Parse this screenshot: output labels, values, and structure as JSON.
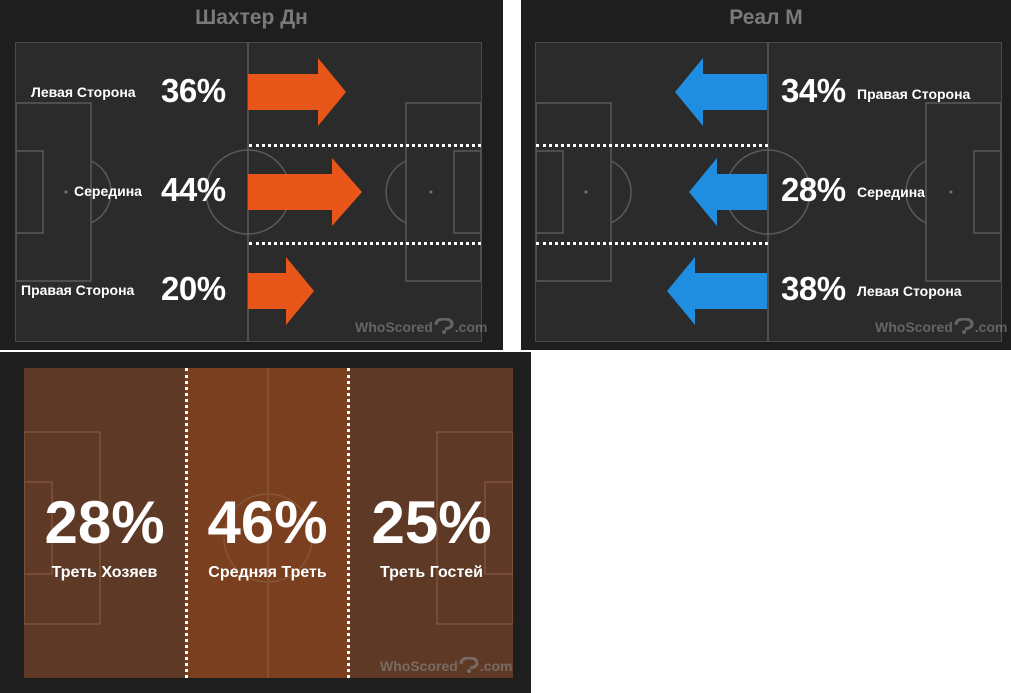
{
  "home_panel": {
    "team": "Шахтер Дн",
    "rows": [
      {
        "label": "Левая Сторона",
        "pct": "36%",
        "value": 36
      },
      {
        "label": "Середина",
        "pct": "44%",
        "value": 44
      },
      {
        "label": "Правая Сторона",
        "pct": "20%",
        "value": 20
      }
    ],
    "watermark": "WhoScored",
    "watermark_tld": ".com"
  },
  "away_panel": {
    "team": "Реал М",
    "rows": [
      {
        "label": "Правая Сторона",
        "pct": "34%",
        "value": 34
      },
      {
        "label": "Середина",
        "pct": "28%",
        "value": 28
      },
      {
        "label": "Левая Сторона",
        "pct": "38%",
        "value": 38
      }
    ],
    "watermark": "WhoScored",
    "watermark_tld": ".com"
  },
  "zones_panel": {
    "zones": [
      {
        "pct": "28%",
        "label": "Треть Хозяев",
        "value": 28
      },
      {
        "pct": "46%",
        "label": "Средняя Треть",
        "value": 46
      },
      {
        "pct": "25%",
        "label": "Треть Гостей",
        "value": 25
      }
    ],
    "watermark": "WhoScored",
    "watermark_tld": ".com"
  },
  "colors": {
    "home_arrow": "#e8561a",
    "away_arrow": "#1f8ee0",
    "zone_outer": "#5e3a26",
    "zone_middle": "#7a3f1f"
  }
}
